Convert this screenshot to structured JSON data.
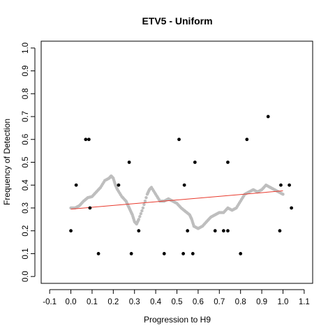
{
  "chart_data": {
    "type": "scatter",
    "title": "ETV5 - Uniform",
    "xlabel": "Progression to H9",
    "ylabel": "Frequency of Detection",
    "xlim": [
      -0.14,
      1.14
    ],
    "ylim": [
      -0.03,
      1.03
    ],
    "x_ticks": [
      -0.1,
      0.0,
      0.1,
      0.2,
      0.3,
      0.4,
      0.5,
      0.6,
      0.7,
      0.8,
      0.9,
      1.0,
      1.1
    ],
    "x_tick_labels": [
      "-0.1",
      "0.0",
      "0.1",
      "0.2",
      "0.3",
      "0.4",
      "0.5",
      "0.6",
      "0.7",
      "0.8",
      "0.9",
      "1.0",
      "1.1"
    ],
    "y_ticks": [
      0.0,
      0.1,
      0.2,
      0.3,
      0.4,
      0.5,
      0.6,
      0.7,
      0.8,
      0.9,
      1.0
    ],
    "y_tick_labels": [
      "0.0",
      "0.1",
      "0.2",
      "0.3",
      "0.4",
      "0.5",
      "0.6",
      "0.7",
      "0.8",
      "0.9",
      "1.0"
    ],
    "grid": false,
    "colors": {
      "observed": "#000000",
      "smoothed": "#bebebe",
      "trend": "#e8382b"
    },
    "series": [
      {
        "style": "observed-points",
        "x": [
          0.0,
          0.025,
          0.07,
          0.085,
          0.09,
          0.13,
          0.225,
          0.275,
          0.285,
          0.32,
          0.44,
          0.51,
          0.53,
          0.535,
          0.55,
          0.575,
          0.585,
          0.68,
          0.72,
          0.74,
          0.74,
          0.8,
          0.83,
          0.93,
          0.985,
          0.99,
          1.03,
          1.04
        ],
        "y": [
          0.2,
          0.4,
          0.6,
          0.6,
          0.3,
          0.1,
          0.4,
          0.5,
          0.1,
          0.2,
          0.1,
          0.6,
          0.1,
          0.4,
          0.2,
          0.1,
          0.5,
          0.2,
          0.2,
          0.2,
          0.5,
          0.1,
          0.6,
          0.7,
          0.2,
          0.4,
          0.4,
          0.3
        ]
      },
      {
        "style": "smoothed-points",
        "x": [
          0.0,
          0.02,
          0.04,
          0.06,
          0.08,
          0.1,
          0.12,
          0.14,
          0.16,
          0.18,
          0.19,
          0.2,
          0.21,
          0.22,
          0.24,
          0.26,
          0.27,
          0.28,
          0.29,
          0.3,
          0.31,
          0.32,
          0.34,
          0.36,
          0.37,
          0.38,
          0.4,
          0.42,
          0.44,
          0.46,
          0.48,
          0.5,
          0.52,
          0.54,
          0.56,
          0.57,
          0.58,
          0.6,
          0.62,
          0.64,
          0.66,
          0.68,
          0.7,
          0.72,
          0.74,
          0.76,
          0.78,
          0.8,
          0.82,
          0.84,
          0.86,
          0.88,
          0.9,
          0.92,
          0.94,
          0.96,
          0.98,
          1.0
        ],
        "y": [
          0.3,
          0.3,
          0.31,
          0.33,
          0.345,
          0.35,
          0.37,
          0.39,
          0.42,
          0.43,
          0.44,
          0.43,
          0.4,
          0.38,
          0.35,
          0.33,
          0.31,
          0.29,
          0.27,
          0.24,
          0.23,
          0.25,
          0.3,
          0.36,
          0.38,
          0.39,
          0.36,
          0.33,
          0.33,
          0.34,
          0.33,
          0.32,
          0.3,
          0.285,
          0.27,
          0.25,
          0.22,
          0.21,
          0.22,
          0.24,
          0.26,
          0.27,
          0.28,
          0.28,
          0.3,
          0.29,
          0.3,
          0.33,
          0.36,
          0.37,
          0.38,
          0.37,
          0.38,
          0.4,
          0.39,
          0.38,
          0.37,
          0.36
        ]
      },
      {
        "style": "trend-line",
        "x": [
          0.0,
          1.0
        ],
        "y": [
          0.295,
          0.375
        ]
      }
    ]
  }
}
